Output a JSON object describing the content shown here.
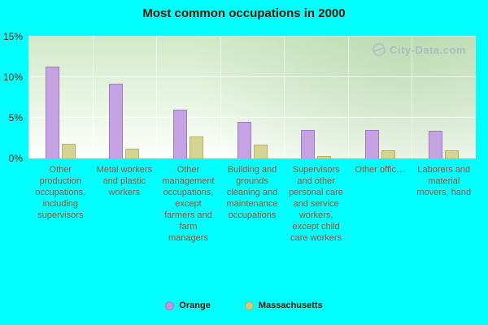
{
  "title": "Most common occupations in 2000",
  "watermark": "City-Data.com",
  "colors": {
    "background": "#00ffff",
    "title_text": "#4b1503",
    "axis_label_text": "#a24f38",
    "plot_top": "#d2eac9",
    "plot_bottom": "#fdfefc"
  },
  "legend": [
    {
      "label": "Orange",
      "color": "#c792dd"
    },
    {
      "label": "Massachusetts",
      "color": "#cccc85"
    }
  ],
  "chart_data": {
    "type": "bar",
    "title": "Most common occupations in 2000",
    "categories": [
      "Other production occupations, including supervisors",
      "Metal workers and plastic workers",
      "Other management occupations, except farmers and farm managers",
      "Building and grounds cleaning and maintenance occupations",
      "Supervisors and other personal care and service workers, except child care workers",
      "Other offic…",
      "Laborers and material movers, hand"
    ],
    "series": [
      {
        "name": "Orange",
        "color": "#c5a3e2",
        "border": "#9e7bc4",
        "values": [
          11.3,
          9.2,
          6.0,
          4.5,
          3.5,
          3.5,
          3.4
        ]
      },
      {
        "name": "Massachusetts",
        "color": "#d6d492",
        "border": "#b5b266",
        "values": [
          1.8,
          1.2,
          2.7,
          1.7,
          0.3,
          1.0,
          1.0
        ]
      }
    ],
    "xlabel": "",
    "ylabel": "",
    "ylim": [
      0,
      15
    ],
    "yticks": [
      "0%",
      "5%",
      "10%",
      "15%"
    ],
    "grid": true,
    "legend_position": "bottom"
  }
}
